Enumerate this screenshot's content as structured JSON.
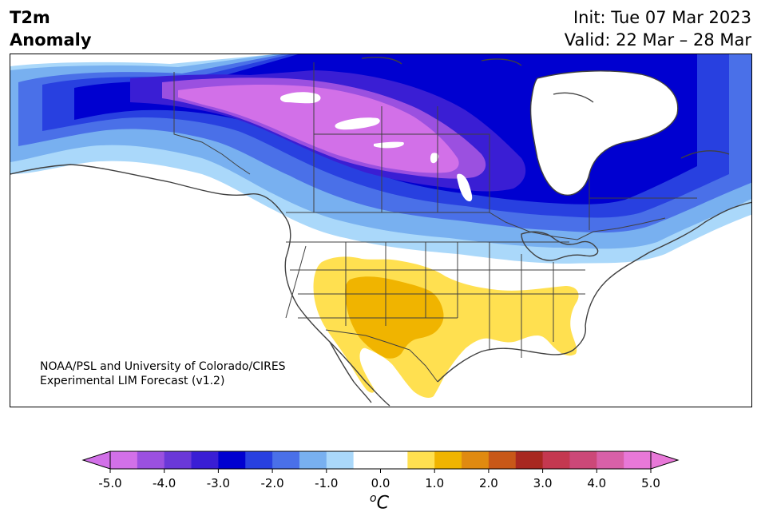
{
  "title": {
    "line1": "T2m",
    "line2": "Anomaly"
  },
  "forecast": {
    "init": "Init: Tue 07 Mar 2023",
    "valid": "Valid: 22 Mar – 28 Mar"
  },
  "credit": {
    "line1": "NOAA/PSL and University of Colorado/CIRES",
    "line2": "Experimental LIM Forecast (v1.2)"
  },
  "colorbar": {
    "unit_sup": "o",
    "unit": "C",
    "ticks": [
      "-5.0",
      "-4.0",
      "-3.0",
      "-2.0",
      "-1.0",
      "0.0",
      "1.0",
      "2.0",
      "3.0",
      "4.0",
      "5.0"
    ],
    "bins": [
      "#d270e8",
      "#9b50e0",
      "#6a38d8",
      "#3a1ed4",
      "#0000d0",
      "#2840e0",
      "#4a70e8",
      "#78b0f0",
      "#aad8fa",
      "#ffffff",
      "#ffffff",
      "#ffe050",
      "#f0b400",
      "#e08a10",
      "#c85818",
      "#a82820",
      "#c43850",
      "#cc4878",
      "#d860a8",
      "#e878d8"
    ],
    "extend_low": "#d270e8",
    "extend_high": "#e878d8"
  },
  "map": {
    "region": "North America",
    "anomaly_colors": {
      "strong_cold": "#d270e8",
      "cold_4": "#9b50e0",
      "cold_3": "#3a1ed4",
      "cold_2": "#0000d0",
      "cold_15": "#2840e0",
      "cold_1": "#4a70e8",
      "cool": "#78b0f0",
      "slight_cool": "#aad8fa",
      "warm_1": "#ffe050",
      "warm_2": "#f0b400",
      "coastline": "#404040"
    }
  }
}
